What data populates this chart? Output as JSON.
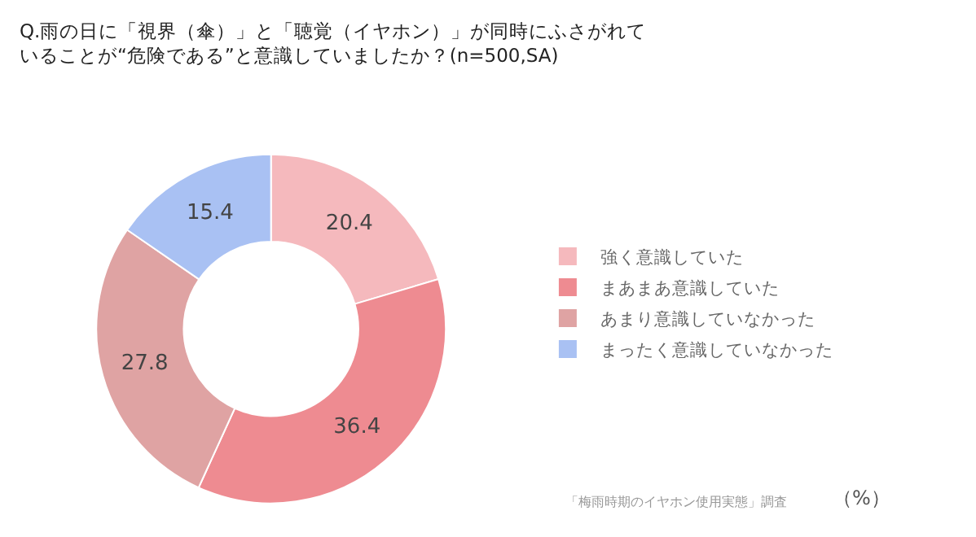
{
  "chart_data": {
    "type": "donut",
    "title": "Q.雨の日に「視界（傘）」と「聴覚（イヤホン）」が同時にふさがれていることが“危険である”と意識していましたか？(n=500,SA)",
    "categories": [
      "強く意識していた",
      "まあまあ意識していた",
      "あまり意識していなかった",
      "まったく意識していなかった"
    ],
    "values": [
      20.4,
      36.4,
      27.8,
      15.4
    ],
    "colors": [
      "#f5b9bd",
      "#ee8b91",
      "#dfa3a3",
      "#a9c1f3"
    ],
    "data_labels": true,
    "legend": "right",
    "annotations": [
      "「梅雨時期のイヤホン使用実態」調査",
      "（%）"
    ]
  }
}
